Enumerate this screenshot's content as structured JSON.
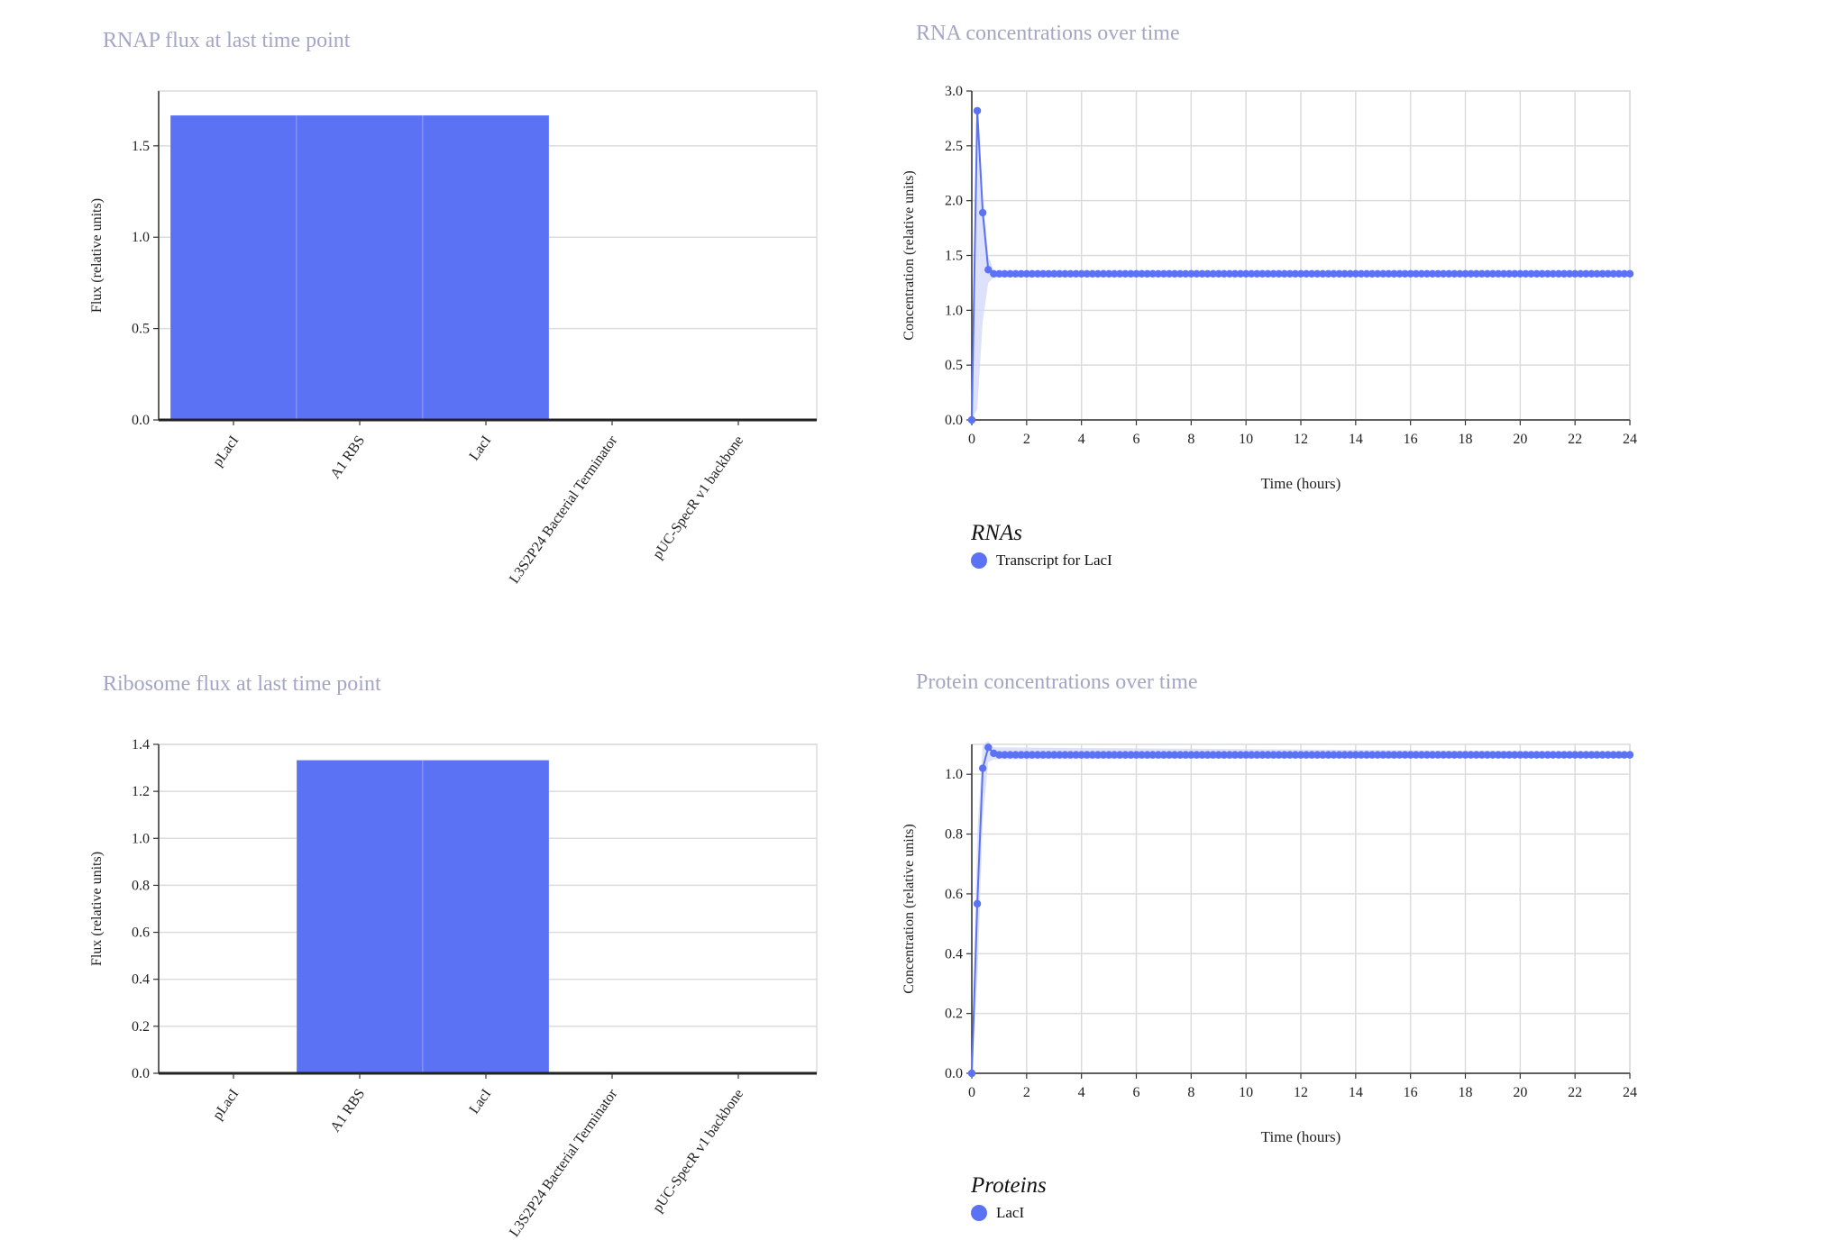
{
  "colors": {
    "bar": "#5b72f5",
    "line": "#5b72f5",
    "band": "#d4daf9",
    "title": "#a3a6c4"
  },
  "chart_data": [
    {
      "type": "bar",
      "title": "RNAP flux at last time point",
      "ylabel": "Flux (relative units)",
      "xlabel": "",
      "categories": [
        "pLacI",
        "A1 RBS",
        "LacI",
        "L3S2P24 Bacterial Terminator",
        "pUC-SpecR v1 backbone"
      ],
      "values": [
        1.667,
        1.667,
        1.667,
        0,
        0
      ],
      "ylim": [
        0,
        1.8
      ],
      "yticks": [
        0,
        0.5,
        1.0,
        1.5
      ],
      "grid": true
    },
    {
      "type": "line",
      "title": "RNA concentrations over time",
      "ylabel": "Concentration (relative units)",
      "xlabel": "Time (hours)",
      "xlim": [
        0,
        24
      ],
      "ylim": [
        0,
        3.0
      ],
      "xticks": [
        0,
        2,
        4,
        6,
        8,
        10,
        12,
        14,
        16,
        18,
        20,
        22,
        24
      ],
      "yticks": [
        0,
        0.5,
        1.0,
        1.5,
        2.0,
        2.5,
        3.0
      ],
      "grid": true,
      "legend_title": "RNAs",
      "legend_position": "bottom-left",
      "series": [
        {
          "name": "Transcript for LacI",
          "x": [
            0,
            0.2,
            0.4,
            0.6
          ],
          "y": [
            0,
            2.82,
            1.89,
            1.37
          ],
          "steady_from": 0.8,
          "steady_to": 24,
          "steady_step": 0.2,
          "steady_value": 1.333,
          "band": {
            "x": [
              0,
              0.2,
              0.4,
              0.6,
              0.8,
              24
            ],
            "low": [
              0,
              0.1,
              0.9,
              1.25,
              1.3,
              1.31
            ],
            "high": [
              0.1,
              2.9,
              2.05,
              1.5,
              1.36,
              1.36
            ]
          }
        }
      ]
    },
    {
      "type": "bar",
      "title": "Ribosome flux at last time point",
      "ylabel": "Flux (relative units)",
      "xlabel": "",
      "categories": [
        "pLacI",
        "A1 RBS",
        "LacI",
        "L3S2P24 Bacterial Terminator",
        "pUC-SpecR v1 backbone"
      ],
      "values": [
        0,
        1.333,
        1.333,
        0,
        0
      ],
      "ylim": [
        0,
        1.4
      ],
      "yticks": [
        0,
        0.2,
        0.4,
        0.6,
        0.8,
        1.0,
        1.2,
        1.4
      ],
      "grid": true
    },
    {
      "type": "line",
      "title": "Protein concentrations over time",
      "ylabel": "Concentration (relative units)",
      "xlabel": "Time (hours)",
      "xlim": [
        0,
        24
      ],
      "ylim": [
        0,
        1.1
      ],
      "xticks": [
        0,
        2,
        4,
        6,
        8,
        10,
        12,
        14,
        16,
        18,
        20,
        22,
        24
      ],
      "yticks": [
        0,
        0.2,
        0.4,
        0.6,
        0.8,
        1.0
      ],
      "grid": true,
      "legend_title": "Proteins",
      "legend_position": "bottom-left",
      "series": [
        {
          "name": "LacI",
          "x": [
            0,
            0.2,
            0.4,
            0.6,
            0.8
          ],
          "y": [
            0,
            0.567,
            1.02,
            1.09,
            1.07
          ],
          "steady_from": 1.0,
          "steady_to": 24,
          "steady_step": 0.2,
          "steady_value": 1.065,
          "band": {
            "x": [
              0,
              0.2,
              0.4,
              0.6,
              0.8,
              24
            ],
            "low": [
              0,
              0.3,
              0.85,
              1.04,
              1.05,
              1.055
            ],
            "high": [
              0.05,
              0.8,
              1.1,
              1.11,
              1.09,
              1.075
            ]
          }
        }
      ]
    }
  ]
}
